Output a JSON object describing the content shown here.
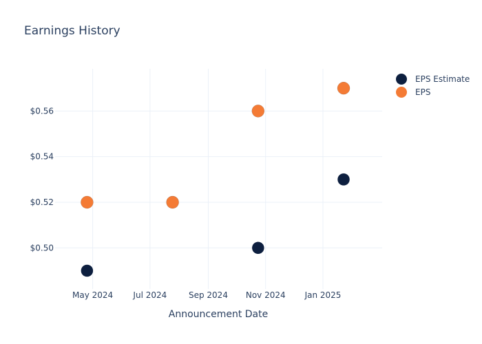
{
  "chart_data": {
    "type": "scatter",
    "title": "Earnings History",
    "xlabel": "Announcement Date",
    "ylabel": "",
    "x_range": [
      "2024-03-22",
      "2025-03-05"
    ],
    "ylim": [
      0.482,
      0.5785
    ],
    "x_ticks": [
      {
        "date": "2024-05-01",
        "label": "May 2024"
      },
      {
        "date": "2024-07-01",
        "label": "Jul 2024"
      },
      {
        "date": "2024-09-01",
        "label": "Sep 2024"
      },
      {
        "date": "2024-11-01",
        "label": "Nov 2024"
      },
      {
        "date": "2025-01-01",
        "label": "Jan 2025"
      }
    ],
    "y_ticks": [
      {
        "value": 0.5,
        "label": "$0.50"
      },
      {
        "value": 0.52,
        "label": "$0.52"
      },
      {
        "value": 0.54,
        "label": "$0.54"
      },
      {
        "value": 0.56,
        "label": "$0.56"
      }
    ],
    "grid": true,
    "legend_position": "top-right",
    "series": [
      {
        "name": "EPS Estimate",
        "color": "#0d1f3f",
        "points": [
          {
            "x": "2024-04-25",
            "y": 0.49
          },
          {
            "x": "2024-07-25",
            "y": 0.52
          },
          {
            "x": "2024-10-24",
            "y": 0.5
          },
          {
            "x": "2025-01-23",
            "y": 0.53
          }
        ]
      },
      {
        "name": "EPS",
        "color": "#f47b35",
        "points": [
          {
            "x": "2024-04-25",
            "y": 0.52
          },
          {
            "x": "2024-07-25",
            "y": 0.52
          },
          {
            "x": "2024-10-24",
            "y": 0.56
          },
          {
            "x": "2025-01-23",
            "y": 0.57
          }
        ]
      }
    ]
  }
}
